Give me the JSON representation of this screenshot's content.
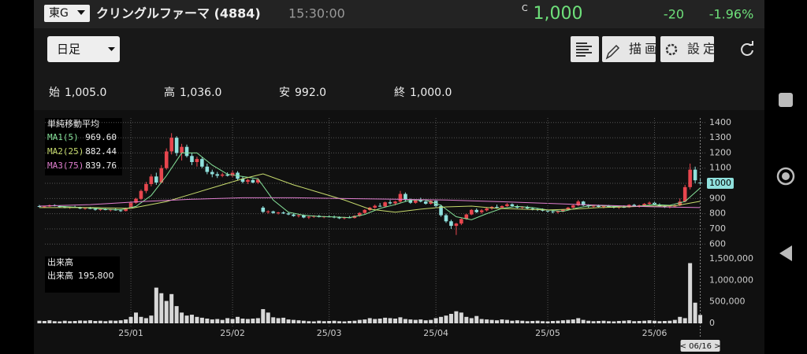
{
  "header": {
    "market": "東G",
    "name": "クリングルファーマ (4884)",
    "time": "15:30:00",
    "price_mark": "C",
    "price": "1,000",
    "change": "-20",
    "change_pct": "-1.96%"
  },
  "toolbar": {
    "period": "日足",
    "draw": "描画",
    "settings": "設定"
  },
  "ohlc_summary": [
    {
      "label": "始",
      "value": "1,005.0"
    },
    {
      "label": "高",
      "value": "1,036.0"
    },
    {
      "label": "安",
      "value": "992.0"
    },
    {
      "label": "終",
      "value": "1,000.0"
    }
  ],
  "chart_data": [
    {
      "type": "candlestick",
      "title": "単純移動平均",
      "up_color": "#e8464e",
      "down_color": "#8fe0dc",
      "grid": true,
      "xlim": [
        -1,
        131
      ],
      "xticks": [
        {
          "value": 18,
          "label": "25/01"
        },
        {
          "value": 38,
          "label": "25/02"
        },
        {
          "value": 57,
          "label": "25/03"
        },
        {
          "value": 78,
          "label": "25/04"
        },
        {
          "value": 100,
          "label": "25/05"
        },
        {
          "value": 121,
          "label": "25/06"
        }
      ],
      "cursor": {
        "value": 130,
        "label": "< 06/16 >"
      },
      "ylim": [
        560,
        1430
      ],
      "yticks": [
        600,
        700,
        800,
        900,
        1000,
        1100,
        1200,
        1300,
        1400
      ],
      "ohlc": [
        [
          850,
          858,
          842,
          846
        ],
        [
          846,
          852,
          838,
          848
        ],
        [
          848,
          860,
          845,
          856
        ],
        [
          856,
          862,
          848,
          850
        ],
        [
          850,
          855,
          840,
          844
        ],
        [
          844,
          850,
          836,
          840
        ],
        [
          840,
          848,
          832,
          845
        ],
        [
          845,
          852,
          840,
          842
        ],
        [
          842,
          846,
          830,
          834
        ],
        [
          834,
          842,
          826,
          838
        ],
        [
          838,
          845,
          830,
          832
        ],
        [
          832,
          838,
          820,
          826
        ],
        [
          826,
          834,
          818,
          830
        ],
        [
          830,
          836,
          822,
          824
        ],
        [
          824,
          832,
          815,
          828
        ],
        [
          828,
          834,
          820,
          822
        ],
        [
          822,
          830,
          812,
          818
        ],
        [
          818,
          840,
          815,
          836
        ],
        [
          836,
          880,
          832,
          872
        ],
        [
          872,
          905,
          866,
          898
        ],
        [
          898,
          960,
          890,
          950
        ],
        [
          950,
          1010,
          935,
          995
        ],
        [
          995,
          1060,
          980,
          1045
        ],
        [
          1045,
          1070,
          990,
          1005
        ],
        [
          1005,
          1120,
          1000,
          1100
        ],
        [
          1100,
          1230,
          1090,
          1210
        ],
        [
          1210,
          1330,
          1190,
          1300
        ],
        [
          1300,
          1310,
          1180,
          1200
        ],
        [
          1200,
          1260,
          1150,
          1240
        ],
        [
          1240,
          1255,
          1170,
          1180
        ],
        [
          1180,
          1200,
          1120,
          1140
        ],
        [
          1140,
          1175,
          1110,
          1160
        ],
        [
          1160,
          1170,
          1100,
          1110
        ],
        [
          1110,
          1130,
          1060,
          1075
        ],
        [
          1075,
          1090,
          1040,
          1060
        ],
        [
          1060,
          1075,
          1035,
          1050
        ],
        [
          1050,
          1070,
          1040,
          1058
        ],
        [
          1058,
          1072,
          1045,
          1050
        ],
        [
          1050,
          1085,
          1040,
          1070
        ],
        [
          1070,
          1080,
          1020,
          1030
        ],
        [
          1030,
          1045,
          1000,
          1010
        ],
        [
          1010,
          1030,
          995,
          1022
        ],
        [
          1022,
          1030,
          1000,
          1005
        ],
        [
          1005,
          1035,
          995,
          1025
        ],
        [
          840,
          850,
          805,
          812
        ],
        [
          812,
          822,
          800,
          815
        ],
        [
          815,
          820,
          800,
          805
        ],
        [
          805,
          812,
          795,
          808
        ],
        [
          808,
          815,
          798,
          802
        ],
        [
          802,
          810,
          790,
          795
        ],
        [
          795,
          800,
          780,
          785
        ],
        [
          785,
          795,
          775,
          790
        ],
        [
          790,
          795,
          770,
          775
        ],
        [
          775,
          785,
          765,
          780
        ],
        [
          780,
          790,
          772,
          786
        ],
        [
          786,
          792,
          775,
          778
        ],
        [
          778,
          785,
          770,
          782
        ],
        [
          782,
          790,
          775,
          780
        ],
        [
          780,
          788,
          770,
          775
        ],
        [
          775,
          782,
          765,
          770
        ],
        [
          770,
          780,
          762,
          776
        ],
        [
          776,
          785,
          770,
          772
        ],
        [
          772,
          790,
          768,
          786
        ],
        [
          786,
          810,
          780,
          805
        ],
        [
          805,
          830,
          800,
          825
        ],
        [
          825,
          845,
          818,
          840
        ],
        [
          840,
          860,
          832,
          852
        ],
        [
          852,
          870,
          845,
          848
        ],
        [
          848,
          880,
          842,
          875
        ],
        [
          875,
          890,
          860,
          868
        ],
        [
          868,
          885,
          855,
          880
        ],
        [
          880,
          950,
          870,
          930
        ],
        [
          930,
          940,
          880,
          890
        ],
        [
          890,
          900,
          865,
          872
        ],
        [
          872,
          895,
          866,
          888
        ],
        [
          888,
          905,
          875,
          880
        ],
        [
          880,
          892,
          860,
          866
        ],
        [
          866,
          890,
          860,
          885
        ],
        [
          885,
          890,
          840,
          850
        ],
        [
          850,
          860,
          780,
          790
        ],
        [
          790,
          800,
          740,
          750
        ],
        [
          750,
          760,
          700,
          720
        ],
        [
          720,
          740,
          660,
          735
        ],
        [
          735,
          770,
          725,
          765
        ],
        [
          765,
          800,
          760,
          795
        ],
        [
          795,
          830,
          790,
          825
        ],
        [
          825,
          835,
          805,
          810
        ],
        [
          810,
          830,
          800,
          822
        ],
        [
          822,
          840,
          815,
          835
        ],
        [
          835,
          850,
          825,
          845
        ],
        [
          845,
          860,
          835,
          840
        ],
        [
          840,
          855,
          830,
          850
        ],
        [
          850,
          870,
          845,
          862
        ],
        [
          862,
          868,
          845,
          850
        ],
        [
          850,
          858,
          835,
          840
        ],
        [
          840,
          850,
          828,
          845
        ],
        [
          845,
          852,
          830,
          835
        ],
        [
          835,
          842,
          822,
          830
        ],
        [
          830,
          838,
          818,
          825
        ],
        [
          825,
          835,
          815,
          820
        ],
        [
          820,
          828,
          808,
          815
        ],
        [
          815,
          822,
          802,
          810
        ],
        [
          810,
          820,
          800,
          816
        ],
        [
          816,
          830,
          810,
          826
        ],
        [
          826,
          845,
          820,
          840
        ],
        [
          840,
          860,
          835,
          855
        ],
        [
          855,
          890,
          850,
          880
        ],
        [
          880,
          885,
          850,
          855
        ],
        [
          855,
          862,
          840,
          848
        ],
        [
          848,
          858,
          838,
          852
        ],
        [
          852,
          860,
          840,
          845
        ],
        [
          845,
          855,
          835,
          850
        ],
        [
          850,
          858,
          842,
          846
        ],
        [
          846,
          852,
          835,
          840
        ],
        [
          840,
          850,
          832,
          845
        ],
        [
          845,
          855,
          838,
          842
        ],
        [
          842,
          862,
          838,
          858
        ],
        [
          858,
          865,
          845,
          850
        ],
        [
          850,
          860,
          840,
          855
        ],
        [
          855,
          870,
          850,
          865
        ],
        [
          865,
          880,
          858,
          872
        ],
        [
          872,
          878,
          855,
          860
        ],
        [
          860,
          868,
          845,
          850
        ],
        [
          850,
          856,
          838,
          845
        ],
        [
          845,
          852,
          835,
          848
        ],
        [
          848,
          860,
          840,
          855
        ],
        [
          855,
          900,
          850,
          880
        ],
        [
          880,
          990,
          875,
          975
        ],
        [
          975,
          1130,
          960,
          1090
        ],
        [
          1090,
          1110,
          1000,
          1020
        ],
        [
          1005,
          1036,
          992,
          1000
        ]
      ],
      "series": [
        {
          "name": "MA1(5)",
          "color": "#86e39a",
          "value_label": "969.60",
          "x": [
            4,
            7,
            10,
            13,
            16,
            19,
            22,
            25,
            28,
            31,
            34,
            37,
            40,
            43,
            46,
            49,
            52,
            55,
            58,
            61,
            64,
            67,
            70,
            73,
            76,
            79,
            82,
            85,
            88,
            91,
            94,
            97,
            100,
            103,
            106,
            109,
            112,
            115,
            118,
            121,
            124,
            127,
            130
          ],
          "values": [
            849,
            843,
            838,
            830,
            826,
            848,
            920,
            1050,
            1200,
            1200,
            1120,
            1060,
            1045,
            1030,
            890,
            810,
            790,
            782,
            779,
            774,
            795,
            835,
            860,
            890,
            890,
            855,
            780,
            760,
            800,
            835,
            848,
            840,
            825,
            815,
            840,
            856,
            850,
            845,
            850,
            860,
            855,
            880,
            970
          ]
        },
        {
          "name": "MA2(25)",
          "color": "#c8dc6e",
          "value_label": "882.44",
          "x": [
            0,
            10,
            18,
            25,
            30,
            35,
            40,
            44,
            50,
            55,
            60,
            65,
            70,
            75,
            80,
            85,
            90,
            95,
            100,
            105,
            110,
            115,
            120,
            125,
            130
          ],
          "values": [
            840,
            840,
            835,
            880,
            930,
            980,
            1030,
            1062,
            990,
            940,
            890,
            830,
            810,
            830,
            845,
            850,
            835,
            830,
            825,
            830,
            840,
            845,
            850,
            852,
            882
          ]
        },
        {
          "name": "MA3(75)",
          "color": "#e07fcf",
          "value_label": "839.76",
          "x": [
            0,
            10,
            20,
            30,
            40,
            50,
            60,
            70,
            80,
            90,
            100,
            110,
            120,
            130
          ],
          "values": [
            850,
            860,
            880,
            895,
            905,
            905,
            900,
            895,
            890,
            880,
            868,
            856,
            846,
            840
          ]
        }
      ]
    },
    {
      "type": "bar",
      "title": "出来高",
      "volume_name": "出来高",
      "volume_label": "195,800",
      "color": "#d8d8d8",
      "xlim": [
        -1,
        131
      ],
      "ylim": [
        0,
        1500000
      ],
      "yticks": [
        0,
        {
          "value": 500000,
          "label": "500,000"
        },
        {
          "value": 1000000,
          "label": "1,000,000"
        },
        {
          "value": 1500000,
          "label": "1,500,000"
        }
      ],
      "values": [
        60000,
        55000,
        70000,
        50000,
        45000,
        60000,
        50000,
        55000,
        65000,
        60000,
        70000,
        55000,
        60000,
        50000,
        65000,
        60000,
        70000,
        90000,
        150000,
        250000,
        150000,
        120000,
        180000,
        830000,
        700000,
        520000,
        680000,
        400000,
        250000,
        180000,
        200000,
        150000,
        130000,
        110000,
        90000,
        100000,
        80000,
        120000,
        100000,
        150000,
        110000,
        100000,
        110000,
        120000,
        330000,
        250000,
        140000,
        120000,
        130000,
        90000,
        80000,
        70000,
        60000,
        50000,
        45000,
        60000,
        50000,
        55000,
        60000,
        50000,
        45000,
        55000,
        60000,
        80000,
        90000,
        120000,
        100000,
        110000,
        130000,
        120000,
        110000,
        140000,
        100000,
        90000,
        80000,
        90000,
        70000,
        80000,
        120000,
        150000,
        180000,
        220000,
        280000,
        250000,
        150000,
        120000,
        170000,
        100000,
        90000,
        80000,
        70000,
        90000,
        80000,
        60000,
        70000,
        60000,
        50000,
        55000,
        60000,
        50000,
        45000,
        55000,
        60000,
        70000,
        80000,
        90000,
        120000,
        80000,
        60000,
        50000,
        55000,
        60000,
        50000,
        45000,
        55000,
        60000,
        70000,
        50000,
        55000,
        60000,
        70000,
        60000,
        50000,
        55000,
        60000,
        80000,
        150000,
        120000,
        1400000,
        480000,
        195800
      ]
    }
  ]
}
